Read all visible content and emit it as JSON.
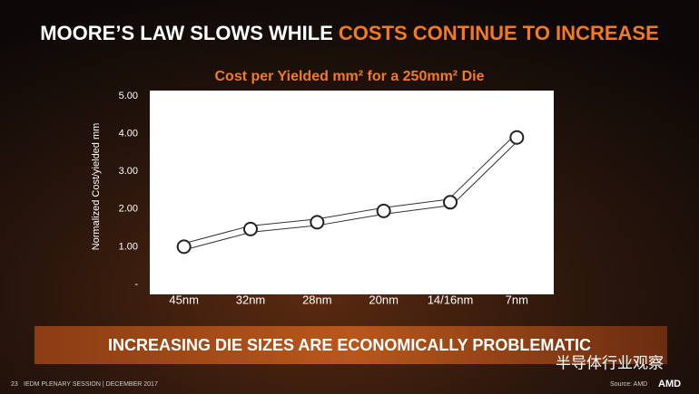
{
  "slide_title": {
    "lead": "MOORE’S LAW SLOWS WHILE",
    "highlight": "COSTS CONTINUE TO INCREASE"
  },
  "chart_data": {
    "type": "line",
    "title": "Cost per Yielded mm² for a 250mm² Die",
    "y_label": "Normalized Cost/yielded mm",
    "categories": [
      "45nm",
      "32nm",
      "28nm",
      "20nm",
      "14/16nm",
      "7nm"
    ],
    "series": [
      {
        "name": "Cost",
        "color": "#ffffff",
        "values": [
          1.0,
          1.47,
          1.65,
          1.95,
          2.18,
          3.9
        ]
      }
    ],
    "ylim": [
      0,
      5
    ],
    "yticks": [
      {
        "value": 0,
        "label": "-"
      },
      {
        "value": 1,
        "label": "1.00"
      },
      {
        "value": 2,
        "label": "2.00"
      },
      {
        "value": 3,
        "label": "3.00"
      },
      {
        "value": 4,
        "label": "4.00"
      },
      {
        "value": 5,
        "label": "5.00"
      }
    ]
  },
  "banner": "INCREASING DIE SIZES ARE ECONOMICALLY PROBLEMATIC",
  "footer": {
    "page": "23",
    "event": "IEDM PLENARY SESSION | DECEMBER 2017",
    "source": "Source: AMD",
    "logo": "AMD",
    "watermark": "半导体行业观察"
  }
}
